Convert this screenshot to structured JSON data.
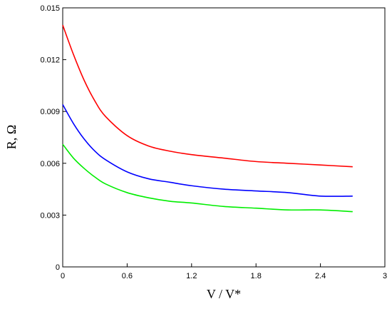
{
  "chart_data": {
    "type": "line",
    "xlabel": "V / V*",
    "ylabel": "R, Ω",
    "xlim": [
      0,
      3
    ],
    "ylim": [
      0,
      0.015
    ],
    "x_ticks": [
      "0",
      "0.6",
      "1.2",
      "1.8",
      "2.4",
      "3"
    ],
    "y_ticks": [
      "0",
      "0.003",
      "0.006",
      "0.009",
      "0.012",
      "0.015"
    ],
    "grid": false,
    "legend": "none",
    "series": [
      {
        "color": "#ff0000",
        "x": [
          0,
          0.1,
          0.2,
          0.3,
          0.4,
          0.6,
          0.8,
          1.0,
          1.2,
          1.5,
          1.8,
          2.1,
          2.4,
          2.7
        ],
        "y": [
          0.014,
          0.0123,
          0.0108,
          0.0096,
          0.0087,
          0.0076,
          0.007,
          0.0067,
          0.0065,
          0.0063,
          0.0061,
          0.006,
          0.0059,
          0.0058
        ]
      },
      {
        "color": "#0000ff",
        "x": [
          0,
          0.1,
          0.2,
          0.3,
          0.4,
          0.6,
          0.8,
          1.0,
          1.2,
          1.5,
          1.8,
          2.1,
          2.4,
          2.7
        ],
        "y": [
          0.0094,
          0.0083,
          0.0074,
          0.0067,
          0.0062,
          0.0055,
          0.0051,
          0.0049,
          0.0047,
          0.0045,
          0.0044,
          0.0043,
          0.0041,
          0.0041
        ]
      },
      {
        "color": "#00ee00",
        "x": [
          0,
          0.1,
          0.2,
          0.3,
          0.4,
          0.6,
          0.8,
          1.0,
          1.2,
          1.5,
          1.8,
          2.1,
          2.4,
          2.7
        ],
        "y": [
          0.0071,
          0.0063,
          0.0057,
          0.0052,
          0.0048,
          0.0043,
          0.004,
          0.0038,
          0.0037,
          0.0035,
          0.0034,
          0.0033,
          0.0033,
          0.0032
        ]
      }
    ]
  }
}
